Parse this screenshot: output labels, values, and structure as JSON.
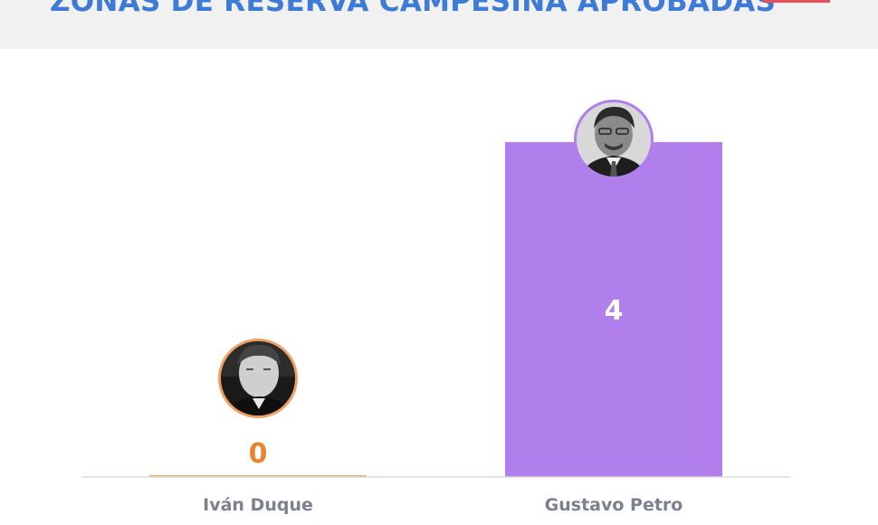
{
  "header": {
    "title": "ZONAS DE RESERVA CAMPESINA APROBADAS"
  },
  "chart_data": {
    "type": "bar",
    "title": "ZONAS DE RESERVA CAMPESINA APROBADAS",
    "xlabel": "",
    "ylabel": "",
    "categories": [
      "Iván Duque",
      "Gustavo Petro"
    ],
    "values": [
      0,
      4
    ],
    "value_labels": [
      "0",
      "4"
    ],
    "ylim": [
      0,
      4
    ],
    "grid": false,
    "colors": {
      "bars": [
        "#f0a35e",
        "#b07fec"
      ],
      "value_labels": [
        "#e8842f",
        "#ffffff"
      ],
      "avatar_rings": [
        "#eea062",
        "#b07fec"
      ],
      "axis": "#dcdcdc",
      "title": "#3d7bd6"
    },
    "icons": [
      "ivan-duque-portrait-icon",
      "gustavo-petro-portrait-icon"
    ]
  }
}
